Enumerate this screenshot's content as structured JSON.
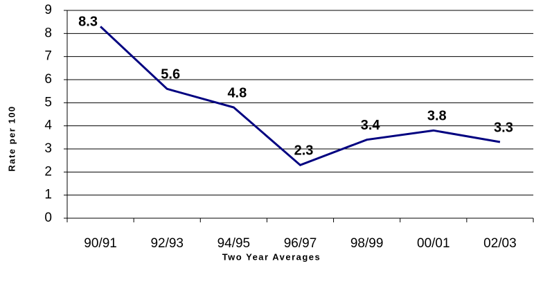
{
  "chart_data": {
    "type": "line",
    "x_label": "Two Year Averages",
    "y_label": "Rate per 100",
    "categories": [
      "90/91",
      "92/93",
      "94/95",
      "96/97",
      "98/99",
      "00/01",
      "02/03"
    ],
    "values": [
      8.3,
      5.6,
      4.8,
      2.3,
      3.4,
      3.8,
      3.3
    ],
    "color": "#000080",
    "ylim": [
      0,
      9
    ],
    "yticks": [
      0,
      1,
      2,
      3,
      4,
      5,
      6,
      7,
      8,
      9
    ],
    "grid": true
  }
}
